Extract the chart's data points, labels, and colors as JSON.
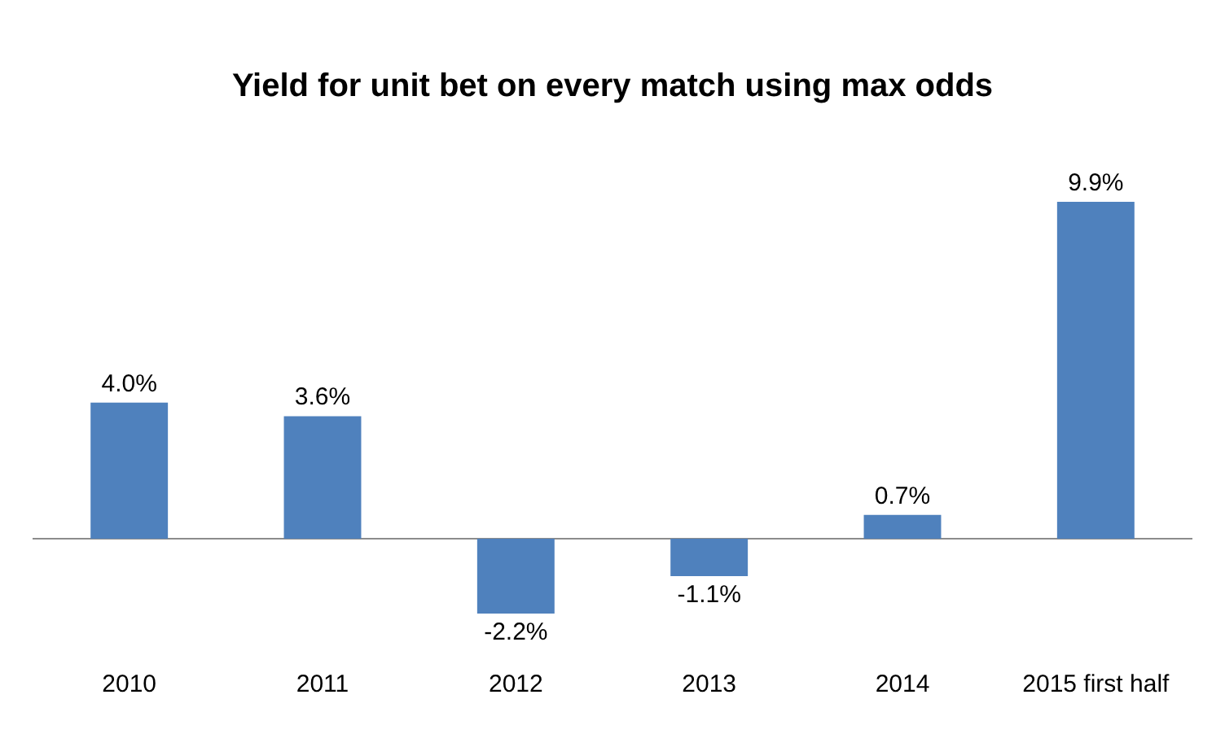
{
  "chart_data": {
    "type": "bar",
    "title": "Yield for unit bet on every match using max odds",
    "categories": [
      "2010",
      "2011",
      "2012",
      "2013",
      "2014",
      "2015 first half"
    ],
    "values": [
      4.0,
      3.6,
      -2.2,
      -1.1,
      0.7,
      9.9
    ],
    "value_labels": [
      "4.0%",
      "3.6%",
      "-2.2%",
      "-1.1%",
      "0.7%",
      "9.9%"
    ],
    "color": "#4f81bd",
    "grid": false,
    "legend": false
  }
}
